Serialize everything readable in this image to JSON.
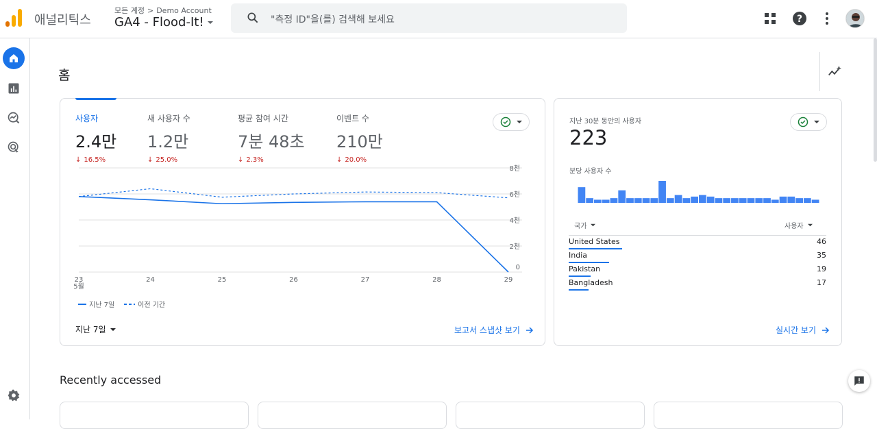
{
  "header": {
    "app_name": "애널리틱스",
    "breadcrumb_root": "모든 계정",
    "breadcrumb_account": "Demo Account",
    "property_name": "GA4 - Flood-It!",
    "search_placeholder": "\"측정 ID\"을(를) 검색해 보세요",
    "brand_colors": {
      "logo_dark": "#E37400",
      "logo_light": "#F9AB00",
      "accent": "#1a73e8"
    }
  },
  "nav": {
    "items": [
      {
        "icon": "home-icon",
        "active": true
      },
      {
        "icon": "reports-icon",
        "active": false
      },
      {
        "icon": "explore-icon",
        "active": false
      },
      {
        "icon": "advertising-icon",
        "active": false
      }
    ],
    "settings_icon": "gear-icon"
  },
  "page": {
    "title": "홈",
    "section_recent": "Recently accessed"
  },
  "overview": {
    "metrics": [
      {
        "label": "사용자",
        "value": "2.4만",
        "delta": "16.5%",
        "active": true
      },
      {
        "label": "새 사용자 수",
        "value": "1.2만",
        "delta": "25.0%",
        "active": false
      },
      {
        "label": "평균 참여 시간",
        "value": "7분 48초",
        "delta": "2.3%",
        "active": false
      },
      {
        "label": "이벤트 수",
        "value": "210만",
        "delta": "20.0%",
        "active": false
      }
    ],
    "date_range": "지난 7일",
    "snapshot_link": "보고서 스냅샷 보기",
    "legend_current": "지난 7일",
    "legend_previous": "이전 기간"
  },
  "chart_data": {
    "type": "line",
    "x": [
      "23",
      "24",
      "25",
      "26",
      "27",
      "28",
      "29"
    ],
    "x_sublabel": "5월",
    "y_ticks": [
      "0",
      "2천",
      "4천",
      "6천",
      "8천"
    ],
    "ylim": [
      0,
      8000
    ],
    "series": [
      {
        "name": "지난 7일",
        "style": "solid",
        "values": [
          5800,
          5550,
          5250,
          5350,
          5400,
          5400,
          0
        ]
      },
      {
        "name": "이전 기간",
        "style": "dashed",
        "values": [
          5800,
          6400,
          5750,
          6000,
          6150,
          6100,
          5700
        ]
      }
    ],
    "colors": {
      "current": "#1a73e8",
      "previous": "#1a73e8"
    }
  },
  "realtime": {
    "label": "지난 30분 동안의 사용자",
    "value": "223",
    "per_minute_label": "분당 사용자 수",
    "per_minute_values": [
      10,
      3,
      2,
      2,
      3,
      8,
      3,
      3,
      3,
      3,
      14,
      3,
      5,
      3,
      4,
      5,
      4,
      3,
      3,
      3,
      3,
      3,
      3,
      3,
      2,
      4,
      4,
      3,
      3,
      2
    ],
    "col_country": "국가",
    "col_users": "사용자",
    "countries": [
      {
        "name": "United States",
        "users": "46",
        "share": 1.0
      },
      {
        "name": "India",
        "users": "35",
        "share": 0.76
      },
      {
        "name": "Pakistan",
        "users": "19",
        "share": 0.41
      },
      {
        "name": "Bangladesh",
        "users": "17",
        "share": 0.37
      }
    ],
    "link": "실시간 보기"
  }
}
